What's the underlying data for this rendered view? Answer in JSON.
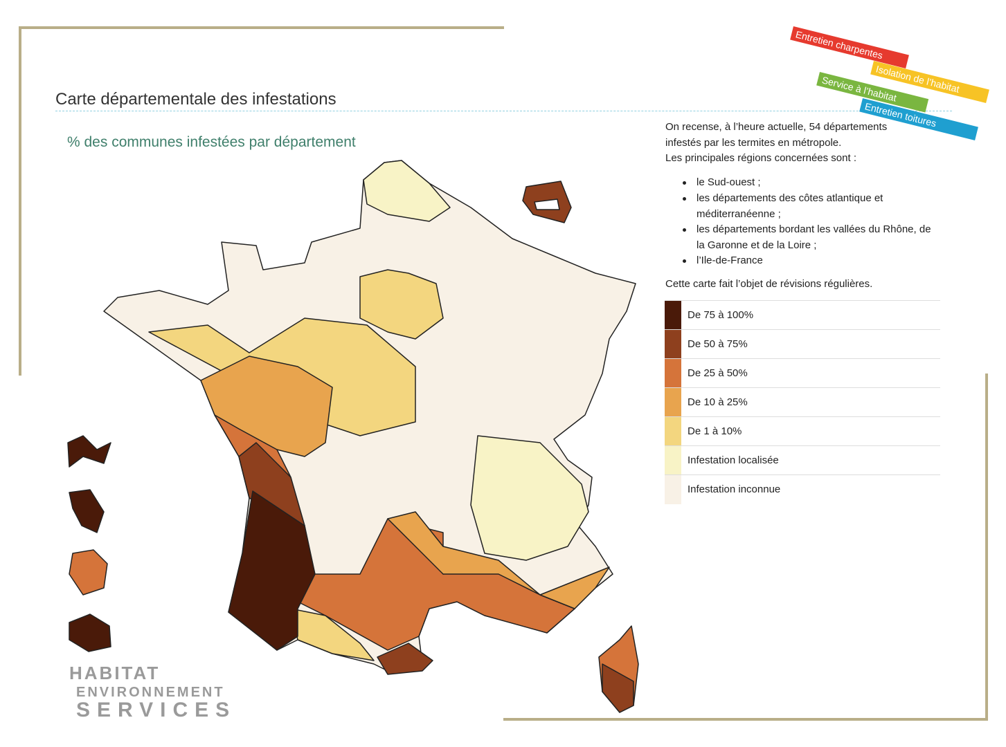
{
  "header": {
    "title": "Carte départementale des infestations",
    "subtitle": "% des communes infestées par département"
  },
  "banner": [
    "Entretien charpentes",
    "Isolation de l’habitat",
    "Service à l’habitat",
    "Entretien toitures"
  ],
  "info": {
    "intro": [
      "On recense, à l’heure actuelle, 54 départements infestés par les termites en métropole.",
      "Les principales régions concernées sont :"
    ],
    "bullets": [
      "le Sud-ouest ;",
      "les départements des côtes atlantique et méditerranéenne ;",
      "les départements bordant les vallées du Rhône, de la Garonne et de la Loire ;",
      "l’Ile-de-France"
    ],
    "note": "Cette carte fait l’objet de révisions régulières."
  },
  "legend": [
    {
      "label": "De 75 à 100%",
      "color": "#4a1a09"
    },
    {
      "label": "De 50 à 75%",
      "color": "#8e401e"
    },
    {
      "label": "De 25 à 50%",
      "color": "#d5743a"
    },
    {
      "label": "De 10 à 25%",
      "color": "#e8a44e"
    },
    {
      "label": "De 1 à 10%",
      "color": "#f3d67f"
    },
    {
      "label": "Infestation localisée",
      "color": "#f8f3c6"
    },
    {
      "label": "Infestation inconnue",
      "color": "#f8f1e6"
    }
  ],
  "logo": [
    "HABITAT",
    "ENVIRONNEMENT",
    "SERVICES"
  ]
}
